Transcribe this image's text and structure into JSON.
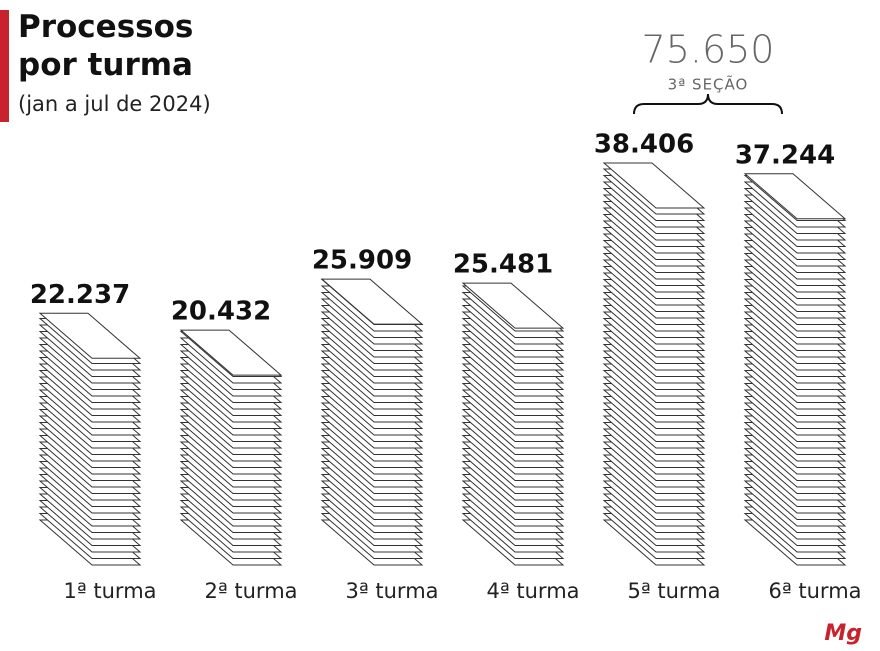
{
  "chart_data": {
    "type": "bar",
    "title": "Processos por turma",
    "subtitle": "(jan a jul de 2024)",
    "categories": [
      "1ª turma",
      "2ª turma",
      "3ª turma",
      "4ª turma",
      "5ª turma",
      "6ª turma"
    ],
    "values": [
      22237,
      20432,
      25909,
      25481,
      38406,
      37244
    ],
    "value_labels": [
      "22.237",
      "20.432",
      "25.909",
      "25.481",
      "38.406",
      "37.244"
    ],
    "color": "#ffffff",
    "annotation": {
      "label": "75.650",
      "text": "3ª SEÇÃO"
    },
    "logo": "Mg"
  }
}
